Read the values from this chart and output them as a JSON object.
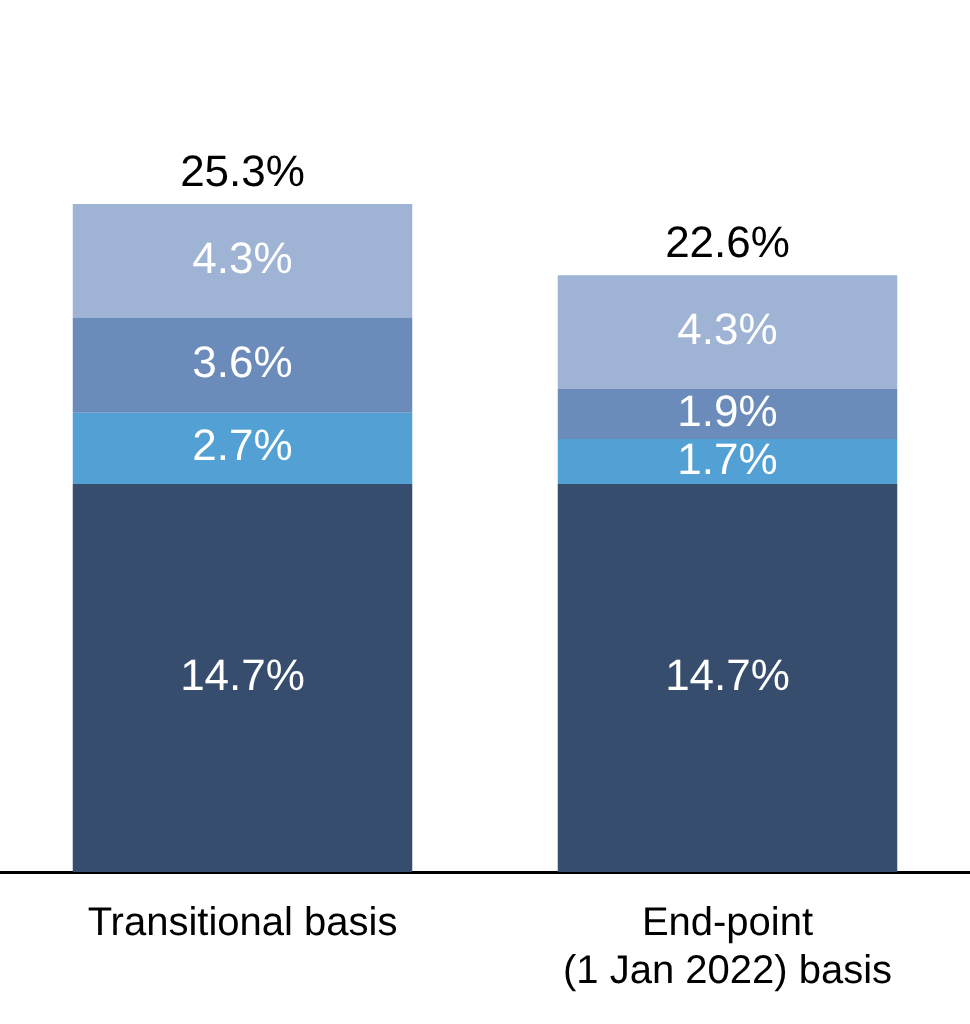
{
  "chart_data": {
    "type": "bar",
    "stacked": true,
    "categories": [
      "Transitional basis",
      "End-point\n(1 Jan 2022) basis"
    ],
    "series": [
      {
        "color": "#374d6e",
        "values": [
          14.7,
          14.7
        ],
        "value_labels": [
          "14.7%",
          "14.7%"
        ]
      },
      {
        "color": "#52a0d4",
        "values": [
          2.7,
          1.7
        ],
        "value_labels": [
          "2.7%",
          "1.7%"
        ]
      },
      {
        "color": "#6b8cba",
        "values": [
          3.6,
          1.9
        ],
        "value_labels": [
          "3.6%",
          "1.9%"
        ]
      },
      {
        "color": "#9fb3d4",
        "values": [
          4.3,
          4.3
        ],
        "value_labels": [
          "4.3%",
          "4.3%"
        ]
      }
    ],
    "totals": [
      "25.3%",
      "22.6%"
    ],
    "grid": false,
    "legend": false,
    "tick_labels": "x"
  }
}
